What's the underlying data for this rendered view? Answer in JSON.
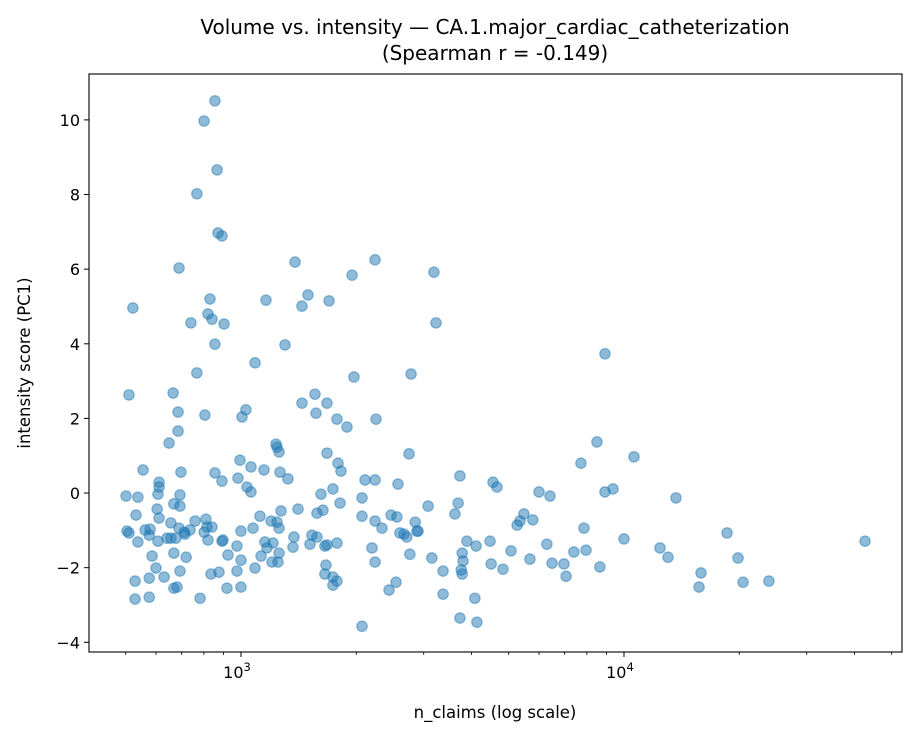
{
  "chart_data": {
    "type": "scatter",
    "title": "Volume vs. intensity — CA.1.major_cardiac_catheterization",
    "subtitle": "(Spearman r = -0.149)",
    "xlabel": "n_claims (log scale)",
    "ylabel": "intensity score (PC1)",
    "xscale": "log",
    "xlim": [
      401,
      53200
    ],
    "ylim": [
      -4.26,
      11.23
    ],
    "xticks": [
      {
        "value": 1000,
        "base": "10",
        "exp": "3"
      },
      {
        "value": 10000,
        "base": "10",
        "exp": "4"
      }
    ],
    "yticks": [
      -4,
      -2,
      0,
      2,
      4,
      6,
      8,
      10
    ],
    "ytick_labels": [
      "−4",
      "−2",
      "0",
      "2",
      "4",
      "6",
      "8",
      "10"
    ],
    "grid": false,
    "marker_color": "#1f77b4",
    "marker_alpha": 0.5,
    "points": [
      [
        855,
        10.51
      ],
      [
        801,
        9.97
      ],
      [
        866,
        8.66
      ],
      [
        767,
        8.02
      ],
      [
        871,
        6.97
      ],
      [
        892,
        6.89
      ],
      [
        689,
        6.03
      ],
      [
        1384,
        6.19
      ],
      [
        2239,
        6.25
      ],
      [
        1950,
        5.84
      ],
      [
        522,
        4.96
      ],
      [
        830,
        5.2
      ],
      [
        1162,
        5.17
      ],
      [
        1496,
        5.31
      ],
      [
        1443,
        5.01
      ],
      [
        1698,
        5.15
      ],
      [
        820,
        4.8
      ],
      [
        840,
        4.66
      ],
      [
        740,
        4.56
      ],
      [
        903,
        4.53
      ],
      [
        855,
        3.99
      ],
      [
        1303,
        3.97
      ],
      [
        1088,
        3.49
      ],
      [
        767,
        3.22
      ],
      [
        1972,
        3.11
      ],
      [
        3190,
        5.92
      ],
      [
        3230,
        4.56
      ],
      [
        2780,
        3.19
      ],
      [
        8920,
        3.73
      ],
      [
        510,
        2.63
      ],
      [
        665,
        2.68
      ],
      [
        685,
        2.17
      ],
      [
        805,
        2.09
      ],
      [
        685,
        1.66
      ],
      [
        649,
        1.34
      ],
      [
        1006,
        2.04
      ],
      [
        1030,
        2.23
      ],
      [
        1443,
        2.41
      ],
      [
        1560,
        2.65
      ],
      [
        1677,
        2.41
      ],
      [
        1570,
        2.14
      ],
      [
        1781,
        1.98
      ],
      [
        1891,
        1.77
      ],
      [
        2252,
        1.98
      ],
      [
        1234,
        1.31
      ],
      [
        1242,
        1.23
      ],
      [
        1257,
        1.1
      ],
      [
        1677,
        1.07
      ],
      [
        1792,
        0.8
      ],
      [
        1824,
        0.59
      ],
      [
        994,
        0.88
      ],
      [
        1062,
        0.7
      ],
      [
        1148,
        0.62
      ],
      [
        1264,
        0.56
      ],
      [
        1326,
        0.38
      ],
      [
        555,
        0.62
      ],
      [
        697,
        0.56
      ],
      [
        855,
        0.54
      ],
      [
        892,
        0.32
      ],
      [
        982,
        0.4
      ],
      [
        1037,
        0.16
      ],
      [
        1062,
        0.03
      ],
      [
        611,
        0.29
      ],
      [
        611,
        0.16
      ],
      [
        607,
        -0.03
      ],
      [
        693,
        -0.05
      ],
      [
        668,
        -0.29
      ],
      [
        693,
        -0.35
      ],
      [
        501,
        -0.08
      ],
      [
        538,
        -0.11
      ],
      [
        604,
        -0.43
      ],
      [
        611,
        -0.67
      ],
      [
        532,
        -0.59
      ],
      [
        656,
        -0.8
      ],
      [
        689,
        -0.94
      ],
      [
        759,
        -0.75
      ],
      [
        810,
        -0.7
      ],
      [
        815,
        -0.91
      ],
      [
        840,
        -0.91
      ],
      [
        801,
        -1.05
      ],
      [
        736,
        -0.99
      ],
      [
        714,
        -1.1
      ],
      [
        711,
        -1.05
      ],
      [
        504,
        -1.02
      ],
      [
        510,
        -1.07
      ],
      [
        562,
        -0.99
      ],
      [
        579,
        -0.97
      ],
      [
        576,
        -1.13
      ],
      [
        538,
        -1.31
      ],
      [
        607,
        -1.29
      ],
      [
        641,
        -1.21
      ],
      [
        656,
        -1.21
      ],
      [
        676,
        -1.21
      ],
      [
        820,
        -1.26
      ],
      [
        892,
        -1.29
      ],
      [
        897,
        -1.26
      ],
      [
        1000,
        -1.02
      ],
      [
        1075,
        -0.94
      ],
      [
        1121,
        -0.62
      ],
      [
        1198,
        -0.75
      ],
      [
        1242,
        -0.78
      ],
      [
        1272,
        -0.48
      ],
      [
        1257,
        -0.94
      ],
      [
        1409,
        -0.43
      ],
      [
        1618,
        -0.03
      ],
      [
        1738,
        0.11
      ],
      [
        1814,
        -0.27
      ],
      [
        1579,
        -0.54
      ],
      [
        1637,
        -0.46
      ],
      [
        2070,
        -0.13
      ],
      [
        2070,
        -0.62
      ],
      [
        2108,
        0.35
      ],
      [
        2239,
        0.35
      ],
      [
        2570,
        0.24
      ],
      [
        2239,
        -0.75
      ],
      [
        2334,
        -0.94
      ],
      [
        2465,
        -0.59
      ],
      [
        2553,
        -0.64
      ],
      [
        2600,
        -1.07
      ],
      [
        586,
        -1.69
      ],
      [
        668,
        -1.61
      ],
      [
        719,
        -1.72
      ],
      [
        600,
        -2.01
      ],
      [
        576,
        -2.28
      ],
      [
        630,
        -2.25
      ],
      [
        693,
        -2.09
      ],
      [
        529,
        -2.36
      ],
      [
        668,
        -2.55
      ],
      [
        681,
        -2.52
      ],
      [
        529,
        -2.84
      ],
      [
        576,
        -2.79
      ],
      [
        782,
        -2.82
      ],
      [
        835,
        -2.17
      ],
      [
        876,
        -2.12
      ],
      [
        976,
        -2.09
      ],
      [
        925,
        -1.66
      ],
      [
        976,
        -1.42
      ],
      [
        1000,
        -1.8
      ],
      [
        1088,
        -2.01
      ],
      [
        919,
        -2.55
      ],
      [
        1000,
        -2.52
      ],
      [
        1128,
        -1.69
      ],
      [
        1155,
        -1.31
      ],
      [
        1169,
        -1.47
      ],
      [
        1212,
        -1.34
      ],
      [
        1205,
        -1.85
      ],
      [
        1249,
        -1.85
      ],
      [
        1257,
        -1.61
      ],
      [
        1375,
        -1.18
      ],
      [
        1367,
        -1.45
      ],
      [
        1514,
        -1.37
      ],
      [
        1532,
        -1.13
      ],
      [
        1579,
        -1.18
      ],
      [
        1656,
        -1.42
      ],
      [
        1677,
        -1.39
      ],
      [
        1781,
        -1.34
      ],
      [
        1667,
        -1.93
      ],
      [
        1656,
        -2.17
      ],
      [
        1738,
        -2.25
      ],
      [
        1781,
        -2.36
      ],
      [
        1738,
        -2.47
      ],
      [
        2198,
        -1.47
      ],
      [
        2239,
        -1.85
      ],
      [
        2435,
        -2.6
      ],
      [
        2540,
        -2.39
      ],
      [
        2070,
        -3.57
      ],
      [
        2746,
        1.05
      ],
      [
        3730,
        0.46
      ],
      [
        4550,
        0.29
      ],
      [
        4660,
        0.16
      ],
      [
        6000,
        0.03
      ],
      [
        6410,
        -0.08
      ],
      [
        8920,
        0.03
      ],
      [
        9360,
        0.11
      ],
      [
        8500,
        1.37
      ],
      [
        7720,
        0.8
      ],
      [
        10620,
        0.97
      ],
      [
        3080,
        -0.35
      ],
      [
        3690,
        -0.27
      ],
      [
        3620,
        -0.56
      ],
      [
        2850,
        -0.78
      ],
      [
        2880,
        -1.02
      ],
      [
        2900,
        -1.02
      ],
      [
        2665,
        -1.1
      ],
      [
        2710,
        -1.18
      ],
      [
        5480,
        -0.56
      ],
      [
        5350,
        -0.75
      ],
      [
        5260,
        -0.86
      ],
      [
        5780,
        -0.72
      ],
      [
        7860,
        -0.94
      ],
      [
        10000,
        -1.23
      ],
      [
        12420,
        -1.47
      ],
      [
        3890,
        -1.29
      ],
      [
        4110,
        -1.42
      ],
      [
        4470,
        -1.29
      ],
      [
        3780,
        -1.61
      ],
      [
        3800,
        -1.82
      ],
      [
        3760,
        -2.06
      ],
      [
        3780,
        -2.17
      ],
      [
        2760,
        -1.64
      ],
      [
        3150,
        -1.74
      ],
      [
        3370,
        -2.09
      ],
      [
        4500,
        -1.9
      ],
      [
        4830,
        -2.04
      ],
      [
        5070,
        -1.55
      ],
      [
        5680,
        -1.77
      ],
      [
        6290,
        -1.37
      ],
      [
        6490,
        -1.88
      ],
      [
        6970,
        -1.9
      ],
      [
        7060,
        -2.23
      ],
      [
        7400,
        -1.58
      ],
      [
        7960,
        -1.53
      ],
      [
        8650,
        -1.98
      ],
      [
        3370,
        -2.71
      ],
      [
        4080,
        -2.82
      ],
      [
        3730,
        -3.35
      ],
      [
        4130,
        -3.46
      ],
      [
        13670,
        -0.13
      ],
      [
        13030,
        -1.72
      ],
      [
        18580,
        -1.07
      ],
      [
        19850,
        -1.74
      ],
      [
        15890,
        -2.14
      ],
      [
        15700,
        -2.52
      ],
      [
        20460,
        -2.39
      ],
      [
        23900,
        -2.36
      ],
      [
        42600,
        -1.29
      ]
    ]
  }
}
